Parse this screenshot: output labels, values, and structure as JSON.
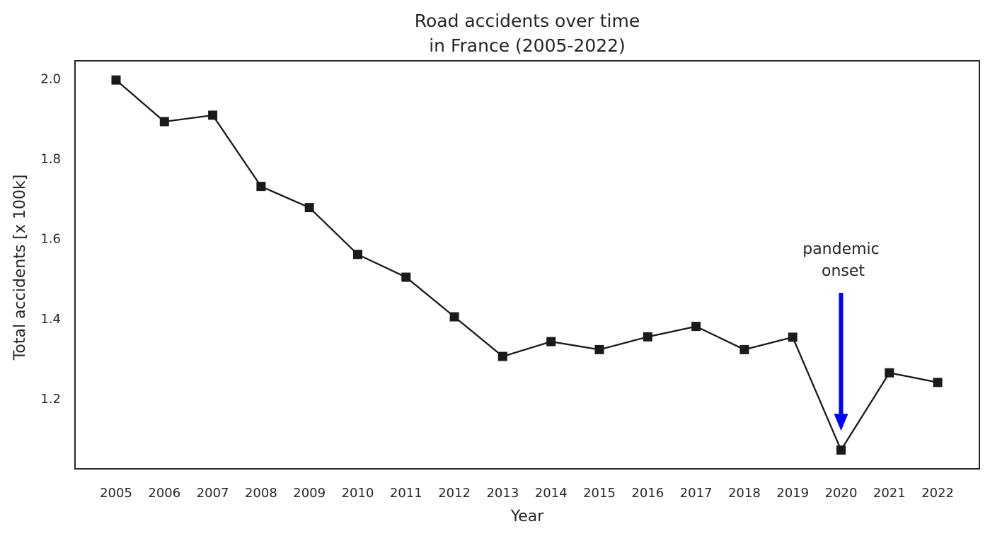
{
  "chart_data": {
    "type": "line",
    "title_lines": [
      "Road accidents over time",
      "in France (2005-2022)"
    ],
    "xlabel": "Year",
    "ylabel": "Total accidents [x 100k]",
    "x": [
      "2005",
      "2006",
      "2007",
      "2008",
      "2009",
      "2010",
      "2011",
      "2012",
      "2013",
      "2014",
      "2015",
      "2016",
      "2017",
      "2018",
      "2019",
      "2020",
      "2021",
      "2022"
    ],
    "series": [
      {
        "values": [
          1.997,
          1.893,
          1.909,
          1.731,
          1.678,
          1.561,
          1.504,
          1.405,
          1.306,
          1.343,
          1.323,
          1.355,
          1.381,
          1.323,
          1.354,
          1.072,
          1.265,
          1.241
        ],
        "color": "#1a1a1a",
        "marker": "square"
      }
    ],
    "yticks": [
      "1.2",
      "1.4",
      "1.6",
      "1.8",
      "2.0"
    ],
    "ylim": [
      1.025,
      2.045
    ],
    "grid": false,
    "annotation": {
      "text_lines": [
        "pandemic",
        "onset"
      ],
      "target_x": "2020",
      "target_y": 1.12,
      "arrow_start_y": 1.465,
      "arrow_color": "#0000ff"
    }
  }
}
